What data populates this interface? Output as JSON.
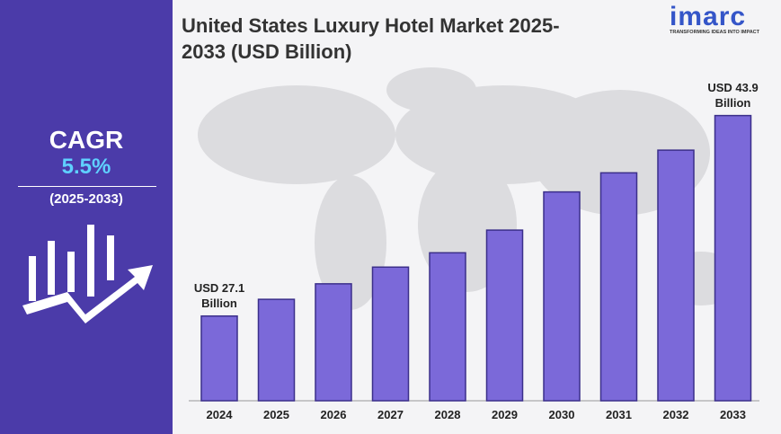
{
  "sidebar": {
    "cagr_label": "CAGR",
    "cagr_value": "5.5%",
    "period": "(2025-2033)"
  },
  "logo": {
    "name": "imarc",
    "tagline": "TRANSFORMING IDEAS INTO IMPACT"
  },
  "chart_data": {
    "type": "bar",
    "title": "United States Luxury Hotel Market 2025-2033 (USD Billion)",
    "categories": [
      "2024",
      "2025",
      "2026",
      "2027",
      "2028",
      "2029",
      "2030",
      "2031",
      "2032",
      "2033"
    ],
    "values": [
      27.1,
      28.5,
      29.8,
      31.2,
      32.4,
      34.3,
      37.5,
      39.1,
      41.0,
      43.9
    ],
    "value_labels": [
      "USD 27.1 Billion",
      null,
      null,
      null,
      null,
      null,
      null,
      null,
      null,
      "USD 43.9 Billion"
    ],
    "color": "#7b69d9",
    "ylim": [
      20,
      45
    ]
  }
}
